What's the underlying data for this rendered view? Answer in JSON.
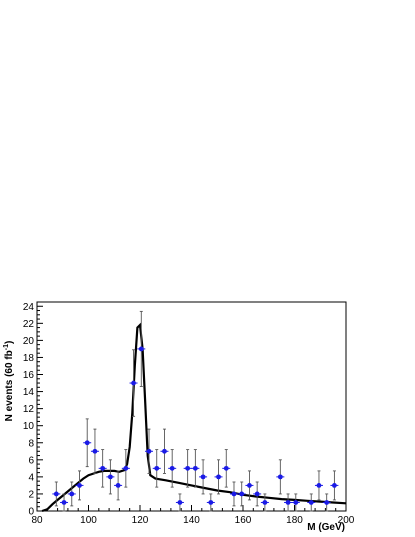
{
  "chart_data": {
    "type": "scatter",
    "xlabel": "M (GeV)",
    "ylabel": "N events (60 fb",
    "ylabel_sup": "-1",
    "ylabel_end": ")",
    "xlim": [
      80,
      200
    ],
    "ylim": [
      0,
      24.5
    ],
    "x_ticks": [
      80,
      100,
      120,
      140,
      160,
      180,
      200
    ],
    "y_ticks": [
      0,
      2,
      4,
      6,
      8,
      10,
      12,
      14,
      16,
      18,
      20,
      22,
      24
    ],
    "grid": false,
    "colors": {
      "points": "#1a1ae6",
      "curve": "#000000",
      "errors": "#555555"
    },
    "points": [
      {
        "x": 87.5,
        "y": 2,
        "err": 1.4
      },
      {
        "x": 90.5,
        "y": 1,
        "err": 1.0
      },
      {
        "x": 93.5,
        "y": 2,
        "err": 1.4
      },
      {
        "x": 96.5,
        "y": 3,
        "err": 1.7
      },
      {
        "x": 99.5,
        "y": 8,
        "err": 2.8
      },
      {
        "x": 102.5,
        "y": 7,
        "err": 2.6
      },
      {
        "x": 105.5,
        "y": 5,
        "err": 2.2
      },
      {
        "x": 108.5,
        "y": 4,
        "err": 2.0
      },
      {
        "x": 111.5,
        "y": 3,
        "err": 1.7
      },
      {
        "x": 114.5,
        "y": 5,
        "err": 2.2
      },
      {
        "x": 117.5,
        "y": 15,
        "err": 3.9
      },
      {
        "x": 120.5,
        "y": 19,
        "err": 4.4
      },
      {
        "x": 123.5,
        "y": 7,
        "err": 2.6
      },
      {
        "x": 126.5,
        "y": 5,
        "err": 2.2
      },
      {
        "x": 129.5,
        "y": 7,
        "err": 2.6
      },
      {
        "x": 132.5,
        "y": 5,
        "err": 2.2
      },
      {
        "x": 135.5,
        "y": 1,
        "err": 1.0
      },
      {
        "x": 138.5,
        "y": 5,
        "err": 2.2
      },
      {
        "x": 141.5,
        "y": 5,
        "err": 2.2
      },
      {
        "x": 144.5,
        "y": 4,
        "err": 2.0
      },
      {
        "x": 147.5,
        "y": 1,
        "err": 1.0
      },
      {
        "x": 150.5,
        "y": 4,
        "err": 2.0
      },
      {
        "x": 153.5,
        "y": 5,
        "err": 2.2
      },
      {
        "x": 156.5,
        "y": 2,
        "err": 1.4
      },
      {
        "x": 159.5,
        "y": 2,
        "err": 1.4
      },
      {
        "x": 162.5,
        "y": 3,
        "err": 1.7
      },
      {
        "x": 165.5,
        "y": 2,
        "err": 1.4
      },
      {
        "x": 168.5,
        "y": 1,
        "err": 1.0
      },
      {
        "x": 174.5,
        "y": 4,
        "err": 2.0
      },
      {
        "x": 177.5,
        "y": 1,
        "err": 1.0
      },
      {
        "x": 180.5,
        "y": 1,
        "err": 1.0
      },
      {
        "x": 186.5,
        "y": 1,
        "err": 1.0
      },
      {
        "x": 189.5,
        "y": 3,
        "err": 1.7
      },
      {
        "x": 192.5,
        "y": 1,
        "err": 1.0
      },
      {
        "x": 195.5,
        "y": 3,
        "err": 1.7
      }
    ],
    "curve": [
      [
        82,
        0.0
      ],
      [
        84,
        0.2
      ],
      [
        86,
        0.8
      ],
      [
        88,
        1.3
      ],
      [
        90,
        1.8
      ],
      [
        92,
        2.3
      ],
      [
        94,
        2.8
      ],
      [
        96,
        3.3
      ],
      [
        98,
        3.8
      ],
      [
        100,
        4.2
      ],
      [
        102,
        4.4
      ],
      [
        104,
        4.6
      ],
      [
        106,
        4.7
      ],
      [
        108,
        4.7
      ],
      [
        110,
        4.7
      ],
      [
        112,
        4.6
      ],
      [
        114,
        4.8
      ],
      [
        115,
        5.5
      ],
      [
        116,
        7.5
      ],
      [
        117,
        11.5
      ],
      [
        118,
        17.0
      ],
      [
        119,
        21.5
      ],
      [
        120,
        21.8
      ],
      [
        121,
        19.0
      ],
      [
        122,
        13.0
      ],
      [
        123,
        6.5
      ],
      [
        124,
        4.2
      ],
      [
        126,
        3.8
      ],
      [
        130,
        3.6
      ],
      [
        135,
        3.3
      ],
      [
        140,
        3.0
      ],
      [
        145,
        2.7
      ],
      [
        150,
        2.4
      ],
      [
        155,
        2.2
      ],
      [
        160,
        1.9
      ],
      [
        165,
        1.7
      ],
      [
        170,
        1.55
      ],
      [
        175,
        1.4
      ],
      [
        180,
        1.3
      ],
      [
        185,
        1.2
      ],
      [
        190,
        1.1
      ],
      [
        195,
        1.0
      ],
      [
        200,
        0.9
      ]
    ]
  }
}
